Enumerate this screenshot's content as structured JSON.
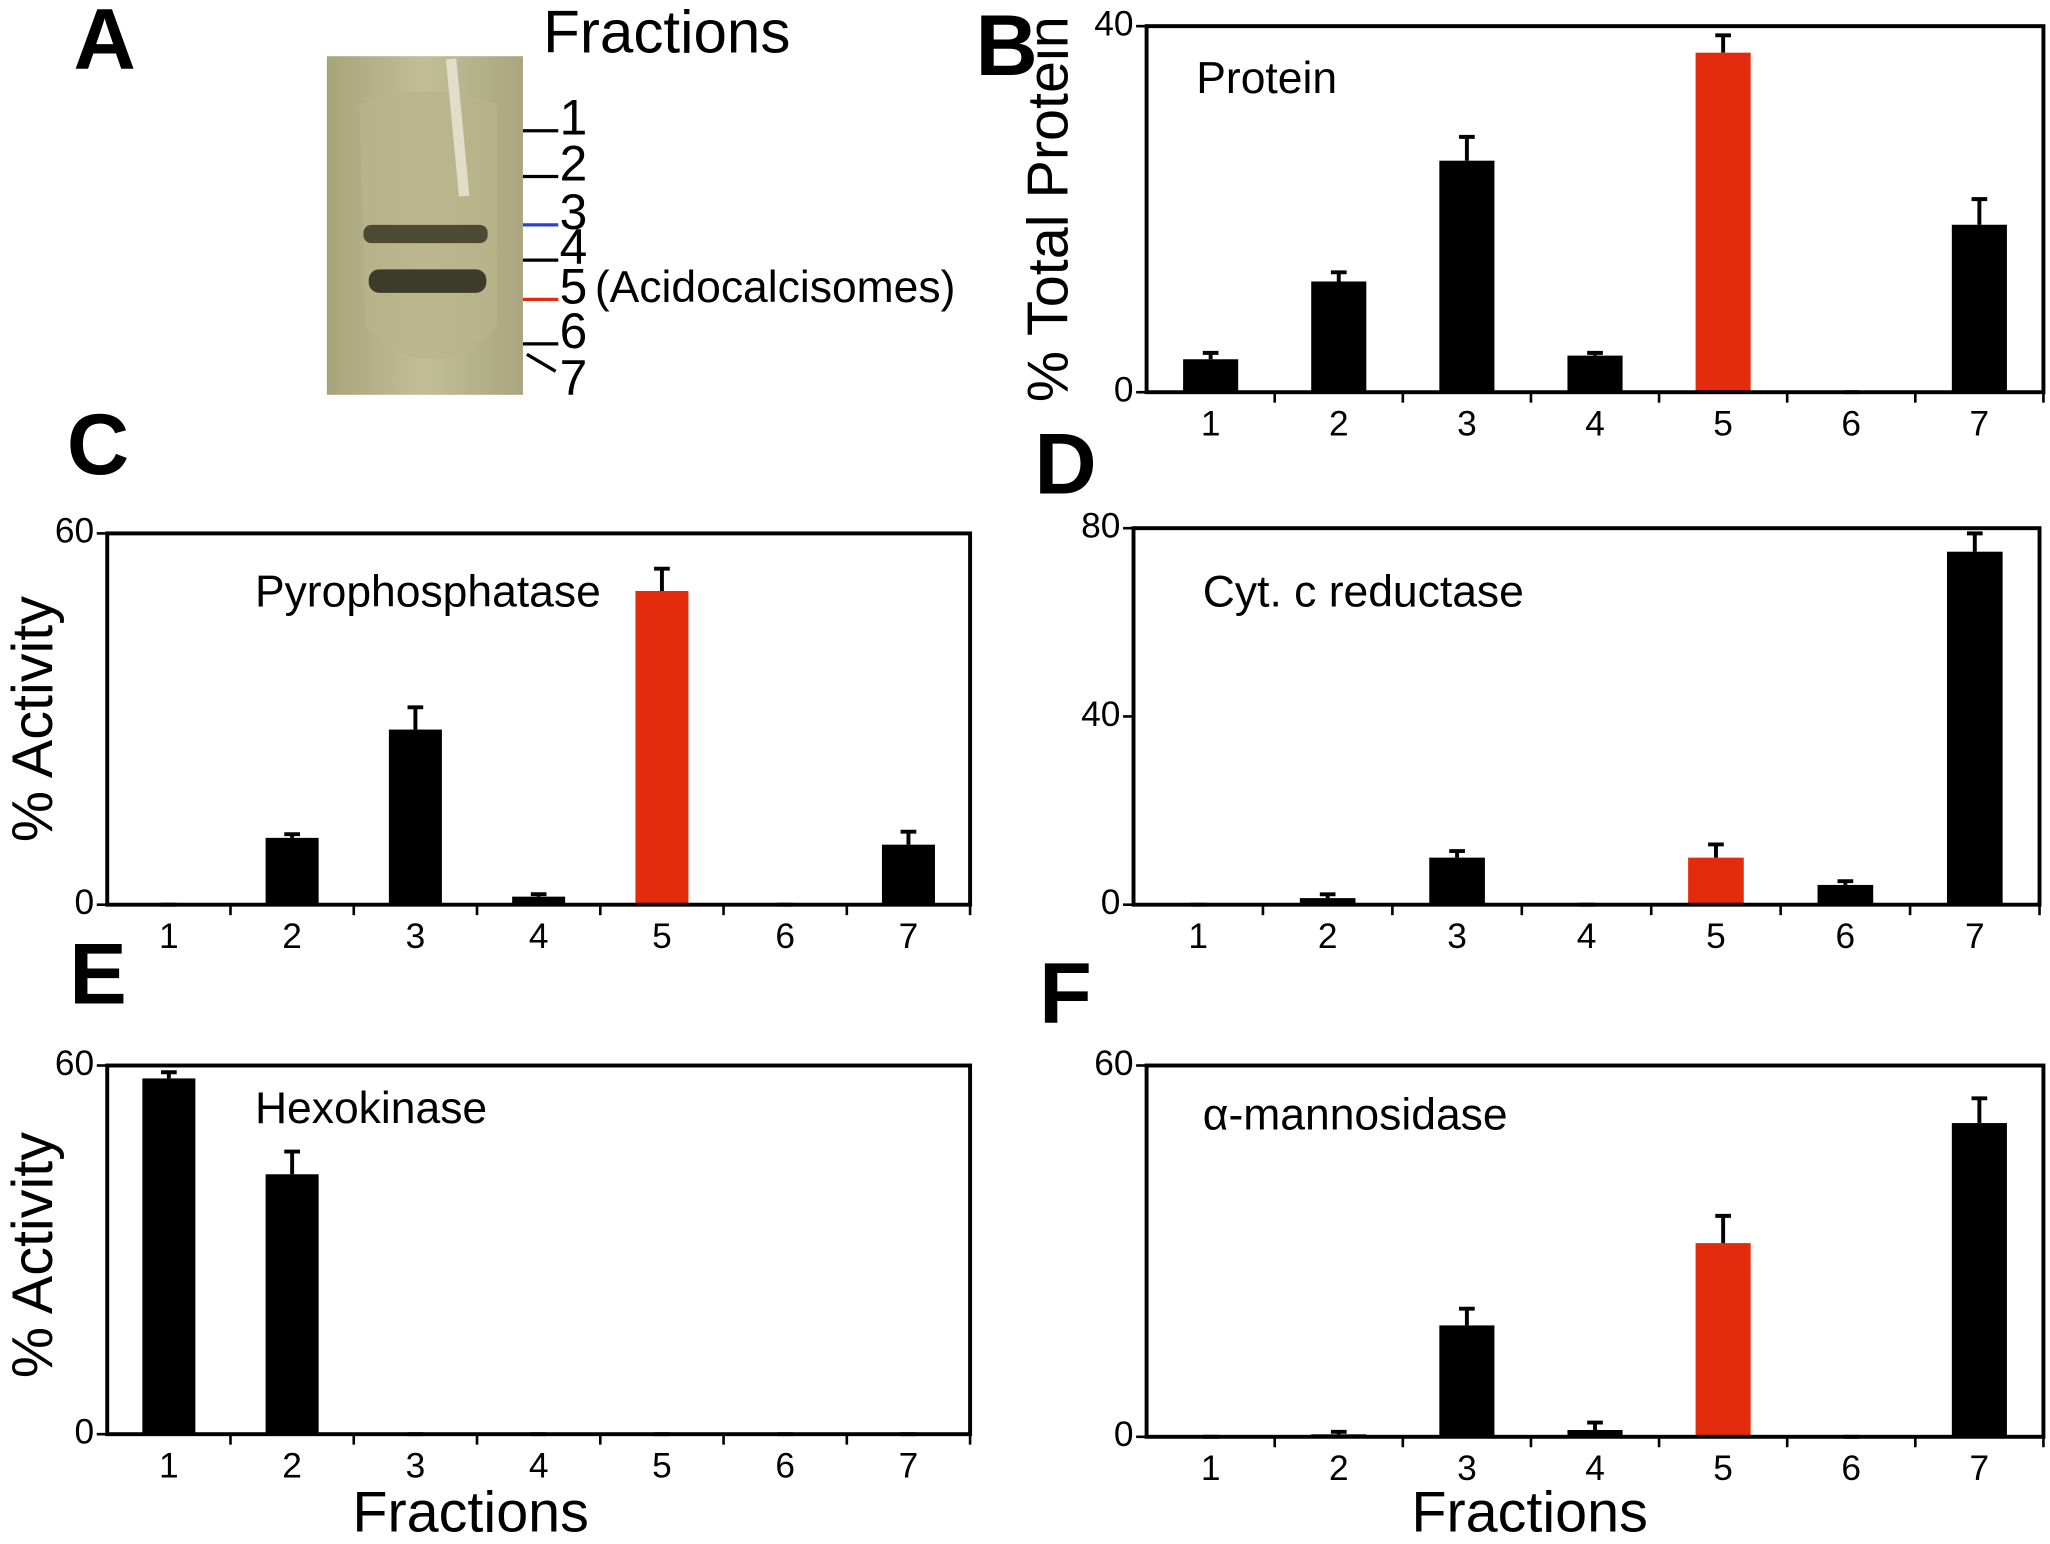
{
  "panel_a": {
    "label": "A",
    "title": "Fractions",
    "fractions": [
      "1",
      "2",
      "3",
      "4",
      "5",
      "6",
      "7"
    ],
    "annotation": "(Acidocalcisomes)"
  },
  "chart_data": [
    {
      "type": "bar",
      "label": "B",
      "annotation": "Protein",
      "ylabel": "% Total Protein",
      "categories": [
        "1",
        "2",
        "3",
        "4",
        "5",
        "6",
        "7"
      ],
      "values": [
        3.6,
        12.1,
        25.3,
        4,
        37.1,
        0,
        18.3
      ],
      "errors": [
        0.7,
        1,
        2.6,
        0.3,
        1.9,
        0,
        2.8
      ],
      "colors": [
        "#000000",
        "#000000",
        "#000000",
        "#000000",
        "#e32b0e",
        "#000000",
        "#000000"
      ],
      "ylim": [
        0,
        40
      ],
      "yticks": [
        0,
        40
      ]
    },
    {
      "type": "bar",
      "label": "C",
      "annotation": "Pyrophosphatase",
      "ylabel": "% Activity",
      "categories": [
        "1",
        "2",
        "3",
        "4",
        "5",
        "6",
        "7"
      ],
      "values": [
        0,
        10.8,
        28.3,
        1.3,
        50.7,
        0,
        9.7
      ],
      "errors": [
        0,
        0.6,
        3.6,
        0.4,
        3.6,
        0,
        2.1
      ],
      "colors": [
        "#000000",
        "#000000",
        "#000000",
        "#000000",
        "#e32b0e",
        "#000000",
        "#000000"
      ],
      "ylim": [
        0,
        60
      ],
      "yticks": [
        0,
        60
      ]
    },
    {
      "type": "bar",
      "label": "D",
      "annotation": "Cyt. c reductase",
      "categories": [
        "1",
        "2",
        "3",
        "4",
        "5",
        "6",
        "7"
      ],
      "values": [
        0,
        1.4,
        10,
        0,
        10,
        4.2,
        75
      ],
      "errors": [
        0,
        0.8,
        1.4,
        0,
        2.8,
        0.8,
        3.9
      ],
      "colors": [
        "#000000",
        "#000000",
        "#000000",
        "#000000",
        "#e32b0e",
        "#000000",
        "#000000"
      ],
      "ylim": [
        0,
        80
      ],
      "yticks": [
        0,
        40,
        80
      ]
    },
    {
      "type": "bar",
      "label": "E",
      "annotation": "Hexokinase",
      "ylabel": "% Activity",
      "xlabel": "Fractions",
      "categories": [
        "1",
        "2",
        "3",
        "4",
        "5",
        "6",
        "7"
      ],
      "values": [
        57.9,
        42.3,
        0,
        0,
        0,
        0,
        0
      ],
      "errors": [
        1,
        3.7,
        0,
        0,
        0,
        0,
        0
      ],
      "colors": [
        "#000000",
        "#000000",
        "#000000",
        "#000000",
        "#000000",
        "#000000",
        "#000000"
      ],
      "ylim": [
        0,
        60
      ],
      "yticks": [
        0,
        60
      ]
    },
    {
      "type": "bar",
      "label": "F",
      "annotation": "α-mannosidase",
      "xlabel": "Fractions",
      "categories": [
        "1",
        "2",
        "3",
        "4",
        "5",
        "6",
        "7"
      ],
      "values": [
        0,
        0.4,
        18,
        1.1,
        31.3,
        0,
        50.7
      ],
      "errors": [
        0,
        0.4,
        2.7,
        1.2,
        4.4,
        0,
        4
      ],
      "colors": [
        "#000000",
        "#000000",
        "#000000",
        "#000000",
        "#e32b0e",
        "#000000",
        "#000000"
      ],
      "ylim": [
        0,
        60
      ],
      "yticks": [
        0,
        60
      ]
    }
  ]
}
